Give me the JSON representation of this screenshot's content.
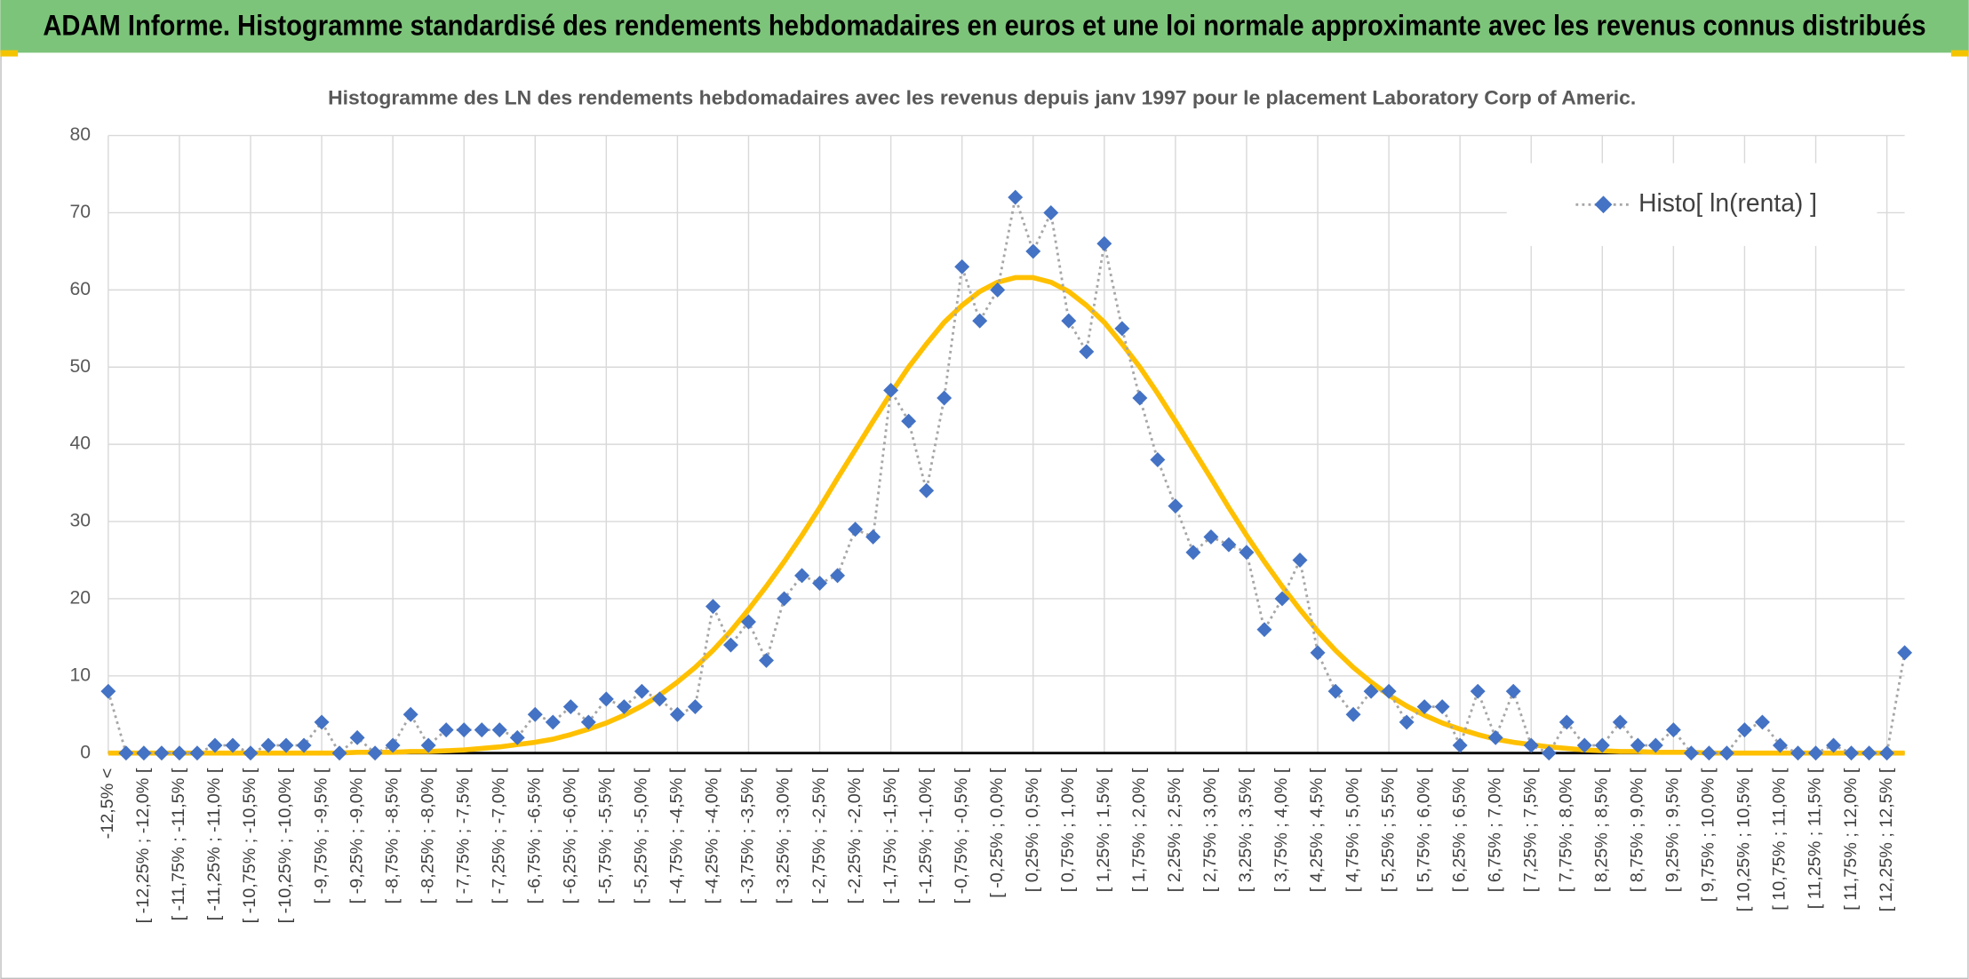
{
  "header": {
    "title": "ADAM Informe. Histogramme standardisé des rendements hebdomadaires en euros et une loi normale approximante avec les revenus connus distribués"
  },
  "chart_data": {
    "type": "line",
    "title": "Histogramme des LN des rendements hebdomadaires avec les revenus depuis janv 1997 pour le placement Laboratory Corp of Americ.",
    "categories": [
      "-12,5% <",
      null,
      "[ -12,25% ; -12,0% [",
      null,
      "[ -11,75% ; -11,5% [",
      null,
      "[ -11,25% ; -11,0% [",
      null,
      "[ -10,75% ; -10,5% [",
      null,
      "[ -10,25% ; -10,0% [",
      null,
      "[ -9,75% ; -9,5% [",
      null,
      "[ -9,25% ; -9,0% [",
      null,
      "[ -8,75% ; -8,5% [",
      null,
      "[ -8,25% ; -8,0% [",
      null,
      "[ -7,75% ; -7,5% [",
      null,
      "[ -7,25% ; -7,0% [",
      null,
      "[ -6,75% ; -6,5% [",
      null,
      "[ -6,25% ; -6,0% [",
      null,
      "[ -5,75% ; -5,5% [",
      null,
      "[ -5,25% ; -5,0% [",
      null,
      "[ -4,75% ; -4,5% [",
      null,
      "[ -4,25% ; -4,0% [",
      null,
      "[ -3,75% ; -3,5% [",
      null,
      "[ -3,25% ; -3,0% [",
      null,
      "[ -2,75% ; -2,5% [",
      null,
      "[ -2,25% ; -2,0% [",
      null,
      "[ -1,75% ; -1,5% [",
      null,
      "[ -1,25% ; -1,0% [",
      null,
      "[ -0,75% ; -0,5% [",
      null,
      "[ -0,25% ; 0,0% [",
      null,
      "[ 0,25% ; 0,5% [",
      null,
      "[ 0,75% ; 1,0% [",
      null,
      "[ 1,25% ; 1,5% [",
      null,
      "[ 1,75% ; 2,0% [",
      null,
      "[ 2,25% ; 2,5% [",
      null,
      "[ 2,75% ; 3,0% [",
      null,
      "[ 3,25% ; 3,5% [",
      null,
      "[ 3,75% ; 4,0% [",
      null,
      "[ 4,25% ; 4,5% [",
      null,
      "[ 4,75% ; 5,0% [",
      null,
      "[ 5,25% ; 5,5% [",
      null,
      "[ 5,75% ; 6,0% [",
      null,
      "[ 6,25% ; 6,5% [",
      null,
      "[ 6,75% ; 7,0% [",
      null,
      "[ 7,25% ; 7,5% [",
      null,
      "[ 7,75% ; 8,0% [",
      null,
      "[ 8,25% ; 8,5% [",
      null,
      "[ 8,75% ; 9,0% [",
      null,
      "[ 9,25% ; 9,5% [",
      null,
      "[ 9,75% ; 10,0% [",
      null,
      "[ 10,25% ; 10,5% [",
      null,
      "[ 10,75% ; 11,0% [",
      null,
      "[ 11,25% ; 11,5% [",
      null,
      "[ 11,75% ; 12,0% [",
      null,
      "[ 12,25% ; 12,5% [",
      null
    ],
    "series": [
      {
        "name": "Histo[ ln(renta) ]",
        "color": "#4472c4",
        "line_color": "#a6a6a6",
        "values": [
          8,
          0,
          0,
          0,
          0,
          0,
          1,
          1,
          0,
          1,
          1,
          1,
          4,
          0,
          2,
          0,
          1,
          5,
          1,
          3,
          3,
          3,
          3,
          2,
          5,
          4,
          6,
          4,
          7,
          6,
          8,
          7,
          5,
          6,
          19,
          14,
          17,
          12,
          20,
          23,
          22,
          23,
          29,
          28,
          47,
          43,
          34,
          46,
          63,
          56,
          60,
          72,
          65,
          70,
          56,
          52,
          66,
          55,
          46,
          38,
          32,
          26,
          28,
          27,
          26,
          16,
          20,
          25,
          13,
          8,
          5,
          8,
          8,
          4,
          6,
          6,
          1,
          8,
          2,
          8,
          1,
          0,
          4,
          1,
          1,
          4,
          1,
          1,
          3,
          0,
          0,
          0,
          3,
          4,
          1,
          0,
          0,
          1,
          0,
          0,
          0,
          13
        ]
      },
      {
        "color": "#ffc000",
        "values": [
          0,
          0,
          0,
          0,
          0,
          0,
          0,
          0,
          0,
          0,
          0,
          0,
          0,
          0,
          0.1,
          0.1,
          0.1,
          0.2,
          0.2,
          0.3,
          0.4,
          0.6,
          0.8,
          1.1,
          1.4,
          1.8,
          2.4,
          3.1,
          3.9,
          4.9,
          6.1,
          7.5,
          9.2,
          11.1,
          13.3,
          15.8,
          18.6,
          21.6,
          24.8,
          28.2,
          31.8,
          35.6,
          39.3,
          43.0,
          46.6,
          50.0,
          53.0,
          55.8,
          58.0,
          59.8,
          61.0,
          61.6,
          61.6,
          61.0,
          59.8,
          58.0,
          55.8,
          53.0,
          50.0,
          46.6,
          43.0,
          39.3,
          35.6,
          31.8,
          28.2,
          24.8,
          21.6,
          18.6,
          15.8,
          13.3,
          11.1,
          9.2,
          7.5,
          6.1,
          4.9,
          3.9,
          3.1,
          2.4,
          1.8,
          1.4,
          1.1,
          0.8,
          0.6,
          0.4,
          0.3,
          0.2,
          0.2,
          0.1,
          0.1,
          0.1,
          0,
          0,
          0,
          0,
          0,
          0,
          0,
          0,
          0,
          0,
          0,
          0
        ]
      }
    ],
    "ylim": [
      0,
      80
    ],
    "yticks": [
      0,
      10,
      20,
      30,
      40,
      50,
      60,
      70,
      80
    ],
    "grid": true,
    "legend": "top-right"
  }
}
